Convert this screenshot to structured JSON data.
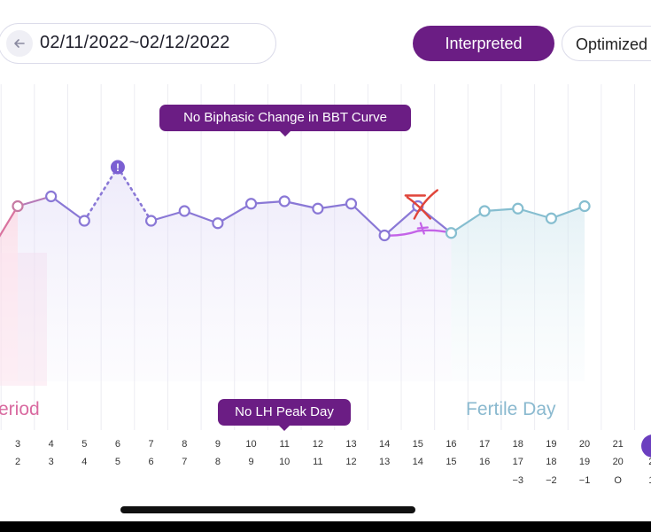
{
  "header": {
    "date_range": "02/11/2022~02/12/2022",
    "tabs": [
      {
        "label": "Interpreted",
        "active": true
      },
      {
        "label": "Optimized",
        "active": false
      }
    ]
  },
  "chart": {
    "top_annotation": "No Biphasic Change in BBT Curve",
    "bottom_annotation": "No LH Peak Day",
    "phase_labels": {
      "period": "eriod",
      "fertile": "Fertile Day"
    },
    "colors": {
      "accent": "#6b1d84",
      "line_purple": "#8a78d6",
      "line_period": "#d9739f",
      "line_fertile": "#86bed0",
      "annotation_pen_red": "#e0453a",
      "annotation_pen_magenta": "#c463e8"
    },
    "warning_icon": "exclamation-icon"
  },
  "chart_data": {
    "type": "line",
    "x_columns": [
      "3",
      "4",
      "5",
      "6",
      "7",
      "8",
      "9",
      "10",
      "11",
      "12",
      "13",
      "14",
      "15",
      "16",
      "17",
      "18",
      "19",
      "20"
    ],
    "series": [
      {
        "values": [
          2,
          3,
          4,
          5,
          6,
          7,
          8,
          9,
          10,
          11,
          12,
          13,
          14,
          15,
          16,
          17,
          18,
          19
        ]
      }
    ],
    "relative_level": [
      0.7,
      0.74,
      0.64,
      0.86,
      0.64,
      0.68,
      0.63,
      0.71,
      0.72,
      0.69,
      0.71,
      0.58,
      0.7,
      0.59,
      0.68,
      0.69,
      0.65,
      0.7
    ],
    "dotted_segments": [
      [
        5,
        6
      ],
      [
        6,
        7
      ]
    ],
    "flagged_point": 6,
    "crossed_point": 15,
    "hand_drawn_correction": {
      "from": 14,
      "via": 15,
      "to": 16,
      "level": 0.62
    },
    "phase_boundaries": {
      "period_end": 3,
      "fertile_start": 16,
      "fertile_end": 20
    }
  },
  "day_axis": {
    "columns": [
      {
        "day": "3",
        "cycle": "2",
        "offset": ""
      },
      {
        "day": "4",
        "cycle": "3",
        "offset": ""
      },
      {
        "day": "5",
        "cycle": "4",
        "offset": ""
      },
      {
        "day": "6",
        "cycle": "5",
        "offset": ""
      },
      {
        "day": "7",
        "cycle": "6",
        "offset": ""
      },
      {
        "day": "8",
        "cycle": "7",
        "offset": ""
      },
      {
        "day": "9",
        "cycle": "8",
        "offset": ""
      },
      {
        "day": "10",
        "cycle": "9",
        "offset": ""
      },
      {
        "day": "11",
        "cycle": "10",
        "offset": ""
      },
      {
        "day": "12",
        "cycle": "11",
        "offset": ""
      },
      {
        "day": "13",
        "cycle": "12",
        "offset": ""
      },
      {
        "day": "14",
        "cycle": "13",
        "offset": ""
      },
      {
        "day": "15",
        "cycle": "14",
        "offset": ""
      },
      {
        "day": "16",
        "cycle": "15",
        "offset": ""
      },
      {
        "day": "17",
        "cycle": "16",
        "offset": ""
      },
      {
        "day": "18",
        "cycle": "17",
        "offset": "−3"
      },
      {
        "day": "19",
        "cycle": "18",
        "offset": "−2"
      },
      {
        "day": "20",
        "cycle": "19",
        "offset": "−1"
      },
      {
        "day": "21",
        "cycle": "20",
        "offset": "O"
      },
      {
        "day": "2",
        "cycle": "2",
        "offset": "1"
      }
    ]
  }
}
